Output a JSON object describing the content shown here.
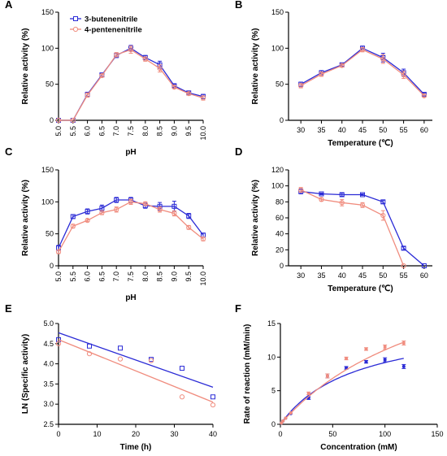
{
  "colors": {
    "blue": "#2b2bd6",
    "red": "#f08c7e"
  },
  "chart_data": [
    {
      "panel": "A",
      "type": "line",
      "xlabel": "pH",
      "ylabel": "Relative activity (%)",
      "xticks": [
        "5.0",
        "5.5",
        "6.0",
        "6.5",
        "7.0",
        "7.5",
        "8.0",
        "8.5",
        "9.0",
        "9.5",
        "10.0"
      ],
      "xtick_rotate": true,
      "xlim": [
        5.0,
        10.0
      ],
      "ylim": [
        0,
        150
      ],
      "yticks": [
        0,
        50,
        100,
        150
      ],
      "legend": "top-left",
      "series": [
        {
          "name": "3-butenenitrile",
          "color": "blue",
          "x": [
            5.0,
            5.5,
            6.0,
            6.5,
            7.0,
            7.5,
            8.0,
            8.5,
            9.0,
            9.5,
            10.0
          ],
          "y": [
            0,
            0,
            36,
            63,
            90,
            100,
            87,
            77,
            48,
            38,
            33
          ],
          "err": [
            0,
            0,
            3,
            2,
            3,
            4,
            3,
            5,
            2,
            2,
            3
          ]
        },
        {
          "name": "4-pentenenitrile",
          "color": "red",
          "x": [
            5.0,
            5.5,
            6.0,
            6.5,
            7.0,
            7.5,
            8.0,
            8.5,
            9.0,
            9.5,
            10.0
          ],
          "y": [
            0,
            0,
            35,
            62,
            91,
            98,
            85,
            72,
            46,
            37,
            31
          ],
          "err": [
            0,
            0,
            3,
            2,
            3,
            5,
            3,
            5,
            2,
            2,
            3
          ]
        }
      ]
    },
    {
      "panel": "B",
      "type": "line",
      "xlabel": "Temperature (℃)",
      "ylabel": "Relative activity (%)",
      "xticks": [
        "30",
        "35",
        "40",
        "45",
        "50",
        "55",
        "60"
      ],
      "xlim": [
        27,
        62
      ],
      "ylim": [
        0,
        150
      ],
      "yticks": [
        0,
        50,
        100,
        150
      ],
      "series": [
        {
          "color": "blue",
          "x": [
            30,
            35,
            40,
            45,
            50,
            55,
            60
          ],
          "y": [
            50,
            66,
            77,
            100,
            87,
            66,
            36
          ],
          "err": [
            3,
            3,
            2,
            3,
            6,
            5,
            2
          ]
        },
        {
          "color": "red",
          "x": [
            30,
            35,
            40,
            45,
            50,
            55,
            60
          ],
          "y": [
            48,
            64,
            76,
            98,
            85,
            63,
            34
          ],
          "err": [
            3,
            3,
            2,
            3,
            6,
            5,
            2
          ]
        }
      ]
    },
    {
      "panel": "C",
      "type": "line",
      "xlabel": "pH",
      "ylabel": "Relative activity (%)",
      "xticks": [
        "5.0",
        "5.5",
        "6.0",
        "6.5",
        "7.0",
        "7.5",
        "8.0",
        "8.5",
        "9.0",
        "9.5",
        "10.0"
      ],
      "xtick_rotate": true,
      "xlim": [
        5.0,
        10.0
      ],
      "ylim": [
        0,
        150
      ],
      "yticks": [
        0,
        50,
        100,
        150
      ],
      "series": [
        {
          "color": "blue",
          "x": [
            5.0,
            5.5,
            6.0,
            6.5,
            7.0,
            7.5,
            8.0,
            8.5,
            9.0,
            9.5,
            10.0
          ],
          "y": [
            28,
            77,
            85,
            90,
            103,
            103,
            94,
            93,
            93,
            78,
            48
          ],
          "err": [
            4,
            3,
            4,
            5,
            4,
            4,
            4,
            6,
            8,
            4,
            3
          ]
        },
        {
          "color": "red",
          "x": [
            5.0,
            5.5,
            6.0,
            6.5,
            7.0,
            7.5,
            8.0,
            8.5,
            9.0,
            9.5,
            10.0
          ],
          "y": [
            22,
            62,
            71,
            83,
            88,
            100,
            97,
            88,
            82,
            60,
            42
          ],
          "err": [
            3,
            3,
            2,
            3,
            4,
            4,
            3,
            4,
            4,
            3,
            3
          ]
        }
      ]
    },
    {
      "panel": "D",
      "type": "line",
      "xlabel": "Temperature (℃)",
      "ylabel": "Relative activity (%)",
      "xticks": [
        "30",
        "35",
        "40",
        "45",
        "50",
        "55",
        "60"
      ],
      "xlim": [
        27,
        62
      ],
      "ylim": [
        0,
        120
      ],
      "yticks": [
        0,
        20,
        40,
        60,
        80,
        100,
        120
      ],
      "series": [
        {
          "color": "blue",
          "x": [
            30,
            35,
            40,
            45,
            50,
            55,
            60
          ],
          "y": [
            93,
            90,
            89,
            89,
            80,
            22,
            0
          ],
          "err": [
            3,
            1,
            2,
            1,
            2,
            2,
            0
          ]
        },
        {
          "color": "red",
          "x": [
            30,
            35,
            40,
            45,
            50,
            55
          ],
          "y": [
            95,
            83,
            79,
            76,
            63,
            0
          ],
          "err": [
            3,
            2,
            4,
            3,
            6,
            0
          ]
        }
      ]
    },
    {
      "panel": "E",
      "type": "scatter",
      "xlabel": "Time (h)",
      "ylabel": "LN (Specific activity)",
      "xticks": [
        "0",
        "10",
        "20",
        "30",
        "40"
      ],
      "xlim": [
        0,
        40
      ],
      "ylim": [
        2.5,
        5.0
      ],
      "yticks": [
        2.5,
        3.0,
        3.5,
        4.0,
        4.5,
        5.0
      ],
      "series": [
        {
          "color": "blue",
          "x": [
            0,
            8,
            16,
            24,
            32,
            40
          ],
          "y": [
            4.6,
            4.44,
            4.39,
            4.11,
            3.89,
            3.18
          ],
          "fit": [
            [
              0,
              4.77
            ],
            [
              40,
              3.42
            ]
          ]
        },
        {
          "color": "red",
          "x": [
            0,
            8,
            16,
            24,
            32,
            40
          ],
          "y": [
            4.5,
            4.25,
            4.12,
            4.08,
            3.18,
            2.98
          ],
          "fit": [
            [
              0,
              4.6
            ],
            [
              40,
              3.05
            ]
          ]
        }
      ]
    },
    {
      "panel": "F",
      "type": "scatter",
      "xlabel": "Concentration (mM)",
      "ylabel": "Rate of reaction (mM/min)",
      "xticks": [
        "0",
        "50",
        "100",
        "150"
      ],
      "xlim": [
        0,
        150
      ],
      "ylim": [
        0,
        15
      ],
      "yticks": [
        0,
        5,
        10,
        15
      ],
      "series": [
        {
          "color": "blue",
          "x": [
            1,
            2.5,
            5,
            10,
            27,
            45,
            63,
            82,
            100,
            118
          ],
          "y": [
            0.2,
            0.5,
            0.9,
            1.6,
            3.9,
            7.2,
            8.4,
            9.3,
            9.6,
            8.6
          ],
          "err": [
            0,
            0,
            0,
            0,
            0.2,
            0.3,
            0.2,
            0.2,
            0.3,
            0.3
          ],
          "fit": {
            "vmax": 15.8,
            "km": 72
          }
        },
        {
          "color": "red",
          "x": [
            1,
            2.5,
            5,
            10,
            27,
            45,
            63,
            82,
            100,
            118
          ],
          "y": [
            0.2,
            0.5,
            0.9,
            1.7,
            4.6,
            7.2,
            9.8,
            11.2,
            11.5,
            12.1
          ],
          "err": [
            0,
            0,
            0,
            0,
            0.2,
            0.3,
            0.2,
            0.2,
            0.3,
            0.3
          ],
          "fit": {
            "vmax": 29,
            "km": 162
          }
        }
      ]
    }
  ]
}
